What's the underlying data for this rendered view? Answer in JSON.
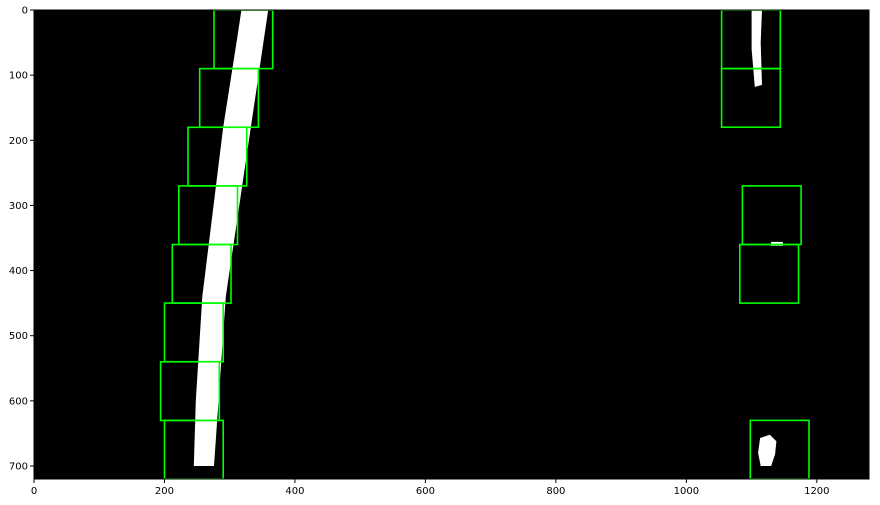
{
  "chart_data": {
    "type": "image",
    "title": "",
    "xlabel": "",
    "ylabel": "",
    "xlim": [
      0,
      1280
    ],
    "ylim": [
      720,
      0
    ],
    "xticks": [
      0,
      200,
      400,
      600,
      800,
      1000,
      1200
    ],
    "yticks": [
      0,
      100,
      200,
      300,
      400,
      500,
      600,
      700
    ],
    "xtick_labels": [
      "0",
      "200",
      "400",
      "600",
      "800",
      "1000",
      "1200"
    ],
    "ytick_labels": [
      "0",
      "100",
      "200",
      "300",
      "400",
      "500",
      "600",
      "700"
    ],
    "background_color": "#000000",
    "lane_pixel_color": "#ffffff",
    "window_color": "#00ff00",
    "left_lane": {
      "polygon": [
        [
          318,
          0
        ],
        [
          359,
          0
        ],
        [
          294,
          440
        ],
        [
          276,
          700
        ],
        [
          245,
          700
        ],
        [
          248,
          600
        ],
        [
          258,
          440
        ],
        [
          290,
          180
        ],
        [
          312,
          40
        ]
      ]
    },
    "right_lane_blobs": [
      {
        "polygon": [
          [
            1100,
            0
          ],
          [
            1116,
            0
          ],
          [
            1114,
            50
          ],
          [
            1116,
            115
          ],
          [
            1105,
            118
          ],
          [
            1100,
            60
          ]
        ]
      },
      {
        "polygon": [
          [
            1130,
            356
          ],
          [
            1148,
            356
          ],
          [
            1148,
            362
          ],
          [
            1130,
            362
          ]
        ]
      },
      {
        "polygon": [
          [
            1113,
            657
          ],
          [
            1128,
            652
          ],
          [
            1138,
            662
          ],
          [
            1136,
            682
          ],
          [
            1130,
            700
          ],
          [
            1114,
            700
          ],
          [
            1110,
            680
          ]
        ]
      }
    ],
    "left_windows": [
      {
        "x_low": 276,
        "x_high": 366,
        "y_low": 0,
        "y_high": 90
      },
      {
        "x_low": 254,
        "x_high": 344,
        "y_low": 90,
        "y_high": 180
      },
      {
        "x_low": 236,
        "x_high": 326,
        "y_low": 180,
        "y_high": 270
      },
      {
        "x_low": 222,
        "x_high": 312,
        "y_low": 270,
        "y_high": 360
      },
      {
        "x_low": 212,
        "x_high": 302,
        "y_low": 360,
        "y_high": 450
      },
      {
        "x_low": 200,
        "x_high": 290,
        "y_low": 450,
        "y_high": 540
      },
      {
        "x_low": 194,
        "x_high": 284,
        "y_low": 540,
        "y_high": 630
      },
      {
        "x_low": 200,
        "x_high": 290,
        "y_low": 630,
        "y_high": 720
      }
    ],
    "right_windows": [
      {
        "x_low": 1054,
        "x_high": 1144,
        "y_low": 0,
        "y_high": 90
      },
      {
        "x_low": 1054,
        "x_high": 1144,
        "y_low": 90,
        "y_high": 180
      },
      {
        "x_low": 1086,
        "x_high": 1176,
        "y_low": 270,
        "y_high": 360
      },
      {
        "x_low": 1082,
        "x_high": 1172,
        "y_low": 360,
        "y_high": 450
      },
      {
        "x_low": 1098,
        "x_high": 1188,
        "y_low": 630,
        "y_high": 720
      }
    ]
  }
}
